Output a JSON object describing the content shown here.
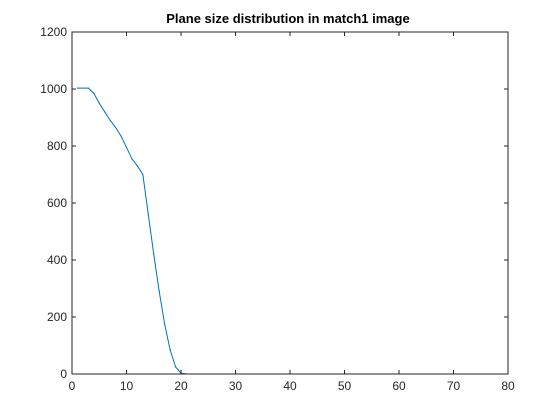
{
  "colors": {
    "background": "#ffffff",
    "axes": "#262626",
    "series": "#0072BD"
  },
  "chart_data": {
    "type": "line",
    "title": "Plane size distribution in match1 image",
    "xlabel": "",
    "ylabel": "",
    "xlim": [
      0,
      80
    ],
    "ylim": [
      0,
      1200
    ],
    "xticks": [
      0,
      10,
      20,
      30,
      40,
      50,
      60,
      70,
      80
    ],
    "yticks": [
      0,
      200,
      400,
      600,
      800,
      1000,
      1200
    ],
    "grid": false,
    "legend": "none",
    "series": [
      {
        "x": [
          1,
          2,
          3,
          4,
          5,
          6,
          7,
          8,
          9,
          10,
          11,
          12,
          13,
          14,
          15,
          16,
          17,
          18,
          19,
          20,
          21,
          25,
          30,
          35,
          40,
          45,
          50,
          55,
          60,
          65,
          70,
          75
        ],
        "values": [
          1003,
          1003,
          1003,
          985,
          950,
          920,
          890,
          865,
          835,
          795,
          755,
          730,
          700,
          560,
          420,
          290,
          175,
          85,
          25,
          3,
          0,
          0,
          0,
          0,
          0,
          0,
          0,
          0,
          0,
          0,
          0,
          0
        ]
      }
    ]
  }
}
